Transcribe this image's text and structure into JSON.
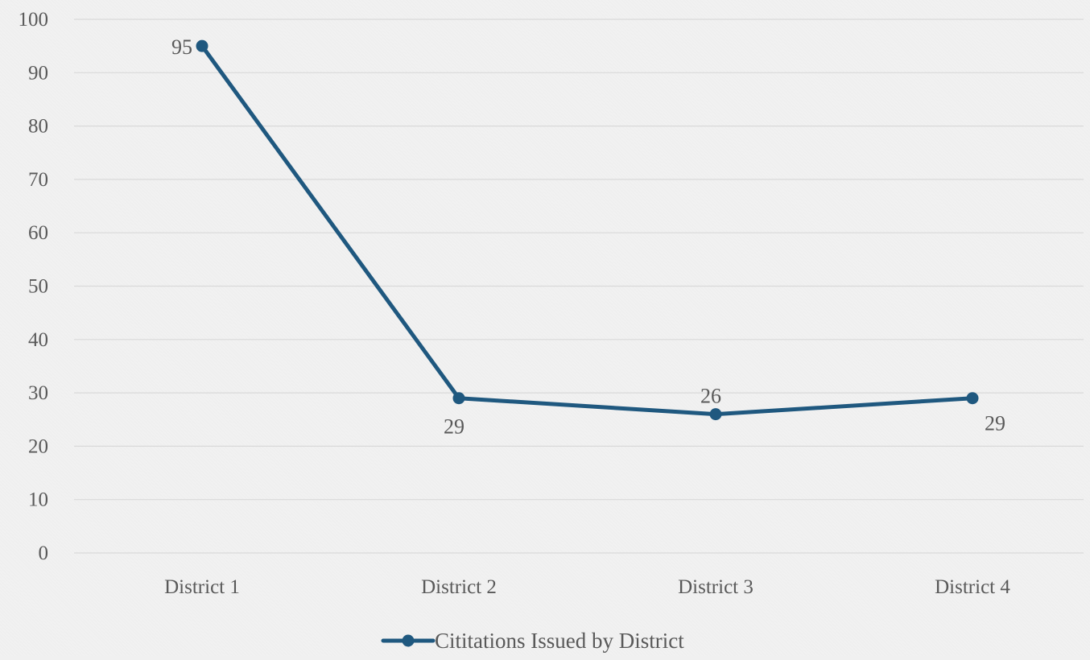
{
  "colors": {
    "series": "#1f587f",
    "gridline": "#d9d9d9",
    "text": "#595959",
    "background": "#f1f1f1"
  },
  "chart_data": {
    "type": "line",
    "title": "",
    "xlabel": "",
    "ylabel": "",
    "categories": [
      "District 1",
      "District 2",
      "District 3",
      "District 4"
    ],
    "series": [
      {
        "name": "Cititations Issued by District",
        "values": [
          95,
          29,
          26,
          29
        ]
      }
    ],
    "data_labels": [
      "95",
      "29",
      "26",
      "29"
    ],
    "ylim": [
      0,
      100
    ],
    "yticks": [
      0,
      10,
      20,
      30,
      40,
      50,
      60,
      70,
      80,
      90,
      100
    ],
    "ytick_labels": [
      "0",
      "10",
      "20",
      "30",
      "40",
      "50",
      "60",
      "70",
      "80",
      "90",
      "100"
    ],
    "grid": true,
    "legend": "bottom-center"
  }
}
